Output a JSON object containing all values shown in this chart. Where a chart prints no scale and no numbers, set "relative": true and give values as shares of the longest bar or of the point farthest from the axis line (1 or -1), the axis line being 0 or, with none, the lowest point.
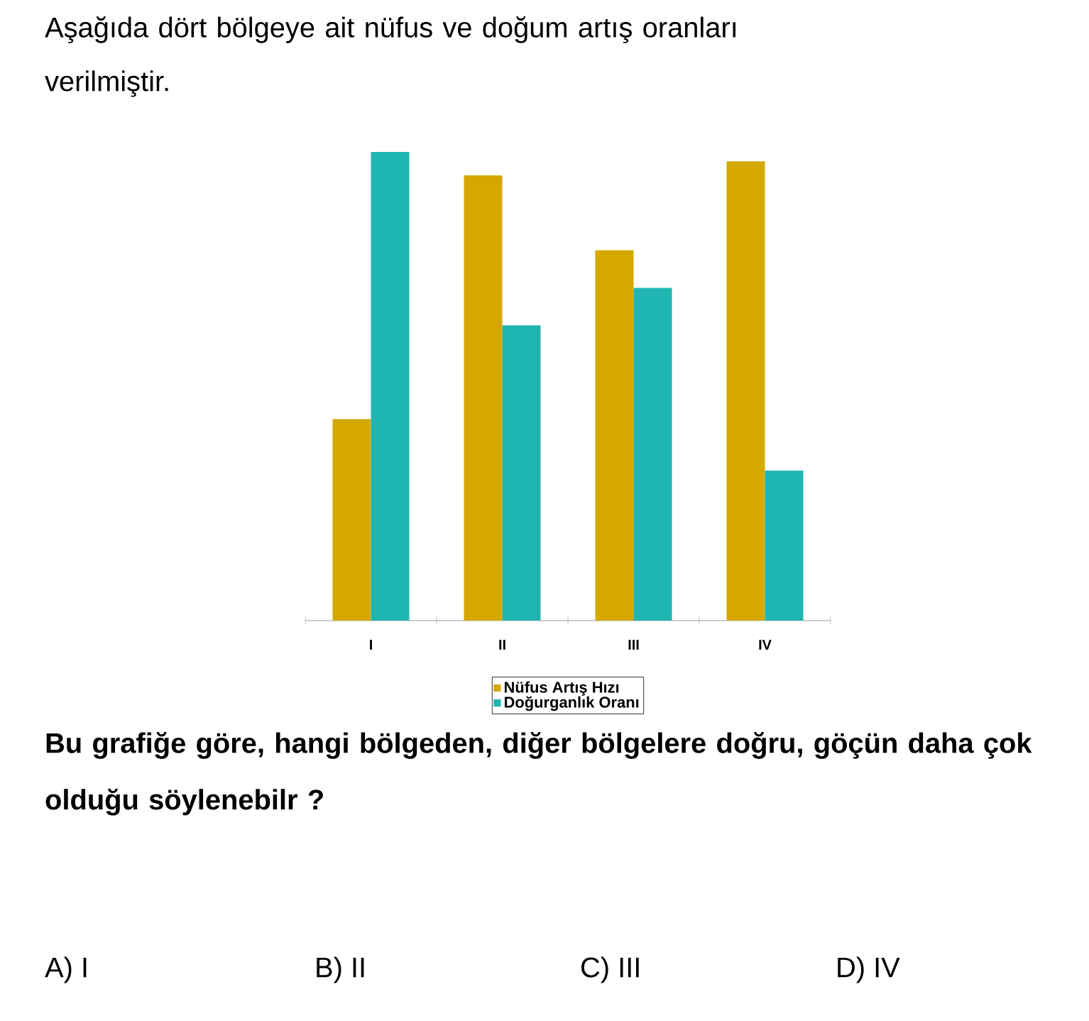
{
  "chart_data": {
    "type": "bar",
    "title": "Aşağıda dört bölgeye ait nüfus ve doğum artış oranları verilmiştir.",
    "categories": [
      "I",
      "II",
      "III",
      "IV"
    ],
    "relative": true,
    "legend": "bottom",
    "series": [
      {
        "name": "Nüfus Artış Hızı",
        "color": "#d4a800",
        "values": [
          0.43,
          0.95,
          0.79,
          0.98
        ]
      },
      {
        "name": "Doğurganlık Oranı",
        "color": "#1fb5b0",
        "values": [
          1,
          0.63,
          0.71,
          0.32
        ]
      }
    ],
    "annotations": [
      "Bu grafiğe göre, hangi bölgeden, diğer bölgelere doğru, göçün daha çok olduğu söylenebilr ?",
      "A) I",
      "B) II",
      "C) III",
      "D) IV"
    ]
  }
}
